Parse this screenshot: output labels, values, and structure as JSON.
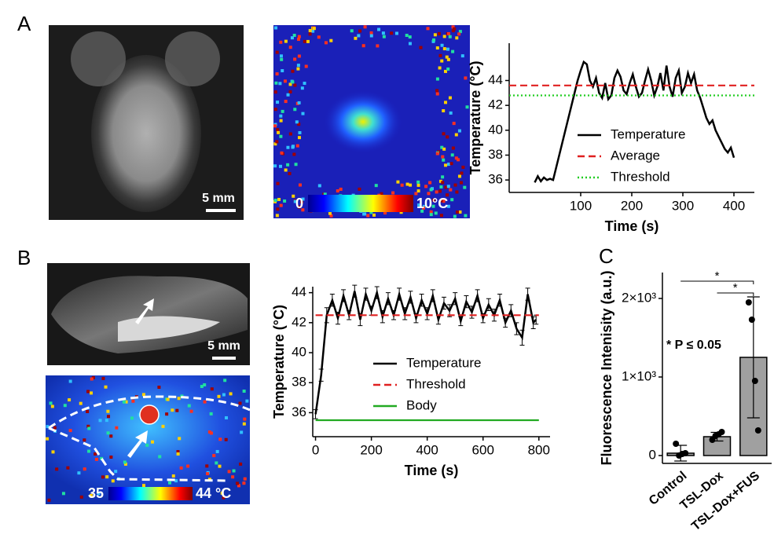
{
  "panel_labels": [
    "A",
    "B",
    "C"
  ],
  "images": [
    {
      "scale_bar": "5 mm"
    },
    {
      "colorbar_ticks": [
        0,
        {
          "value": 10,
          "label": "10°C"
        }
      ]
    },
    {
      "scale_bar": "5 mm"
    },
    {
      "colorbar_ticks": [
        35,
        {
          "value": 44,
          "label": "44 °C"
        }
      ]
    }
  ],
  "chart_data": [
    {
      "type": "line",
      "xlabel": "Time (s)",
      "ylabel": "Temperature (°C)",
      "xlim": [
        -40,
        440
      ],
      "ylim": [
        35,
        47
      ],
      "xticks": [
        100,
        200,
        300,
        400
      ],
      "yticks": [
        36,
        38,
        40,
        42,
        44
      ],
      "legend": "lower right",
      "series": [
        {
          "name": "Temperature",
          "color": "#000000",
          "dash": "solid",
          "x": [
            10,
            16,
            22,
            28,
            34,
            40,
            46,
            52,
            58,
            64,
            70,
            76,
            82,
            88,
            94,
            100,
            106,
            112,
            118,
            124,
            130,
            136,
            142,
            148,
            154,
            160,
            166,
            172,
            178,
            184,
            190,
            196,
            202,
            208,
            214,
            220,
            226,
            232,
            238,
            244,
            250,
            256,
            262,
            268,
            274,
            280,
            286,
            292,
            298,
            304,
            310,
            316,
            322,
            328,
            334,
            340,
            346,
            352,
            358,
            364,
            370,
            376,
            382,
            388,
            394,
            400
          ],
          "values": [
            35.8,
            36.3,
            35.9,
            36.2,
            36.0,
            36.1,
            36.0,
            37.0,
            38.0,
            39.0,
            40.0,
            41.0,
            42.0,
            43.0,
            44.0,
            44.8,
            45.5,
            45.3,
            44.0,
            43.5,
            44.2,
            43.0,
            42.6,
            43.8,
            42.5,
            42.8,
            44.2,
            44.8,
            44.3,
            43.2,
            42.9,
            43.8,
            44.5,
            43.5,
            42.7,
            43.0,
            44.0,
            44.9,
            44.0,
            42.8,
            43.5,
            44.6,
            43.2,
            45.2,
            43.5,
            42.7,
            44.2,
            44.8,
            43.0,
            43.5,
            44.6,
            43.8,
            44.5,
            43.2,
            42.6,
            41.8,
            41.0,
            40.5,
            40.8,
            40.0,
            39.5,
            39.0,
            38.5,
            38.2,
            38.6,
            37.8
          ]
        },
        {
          "name": "Average",
          "color": "#e02020",
          "dash": "dashed",
          "x": [
            -40,
            440
          ],
          "values": [
            43.6,
            43.6
          ]
        },
        {
          "name": "Threshold",
          "color": "#22cc22",
          "dash": "dotted",
          "x": [
            -40,
            440
          ],
          "values": [
            42.8,
            42.8
          ]
        }
      ]
    },
    {
      "type": "line",
      "xlabel": "Time (s)",
      "ylabel": "Temperature (°C)",
      "xlim": [
        -10,
        840
      ],
      "ylim": [
        34.4,
        44.4
      ],
      "xticks": [
        0,
        200,
        400,
        600,
        800
      ],
      "yticks": [
        36,
        38,
        40,
        42,
        44
      ],
      "legend": "lower right",
      "series": [
        {
          "name": "Temperature",
          "color": "#000000",
          "dash": "solid",
          "x": [
            0,
            20,
            40,
            60,
            80,
            100,
            120,
            140,
            160,
            180,
            200,
            220,
            240,
            260,
            280,
            300,
            320,
            340,
            360,
            380,
            400,
            420,
            440,
            460,
            480,
            500,
            520,
            540,
            560,
            580,
            600,
            620,
            640,
            660,
            680,
            700,
            720,
            740,
            760,
            780,
            790
          ],
          "values": [
            35.9,
            38.5,
            42.5,
            43.5,
            42.3,
            43.8,
            42.5,
            44.1,
            42.2,
            43.9,
            42.8,
            44.0,
            42.4,
            43.6,
            42.5,
            43.9,
            42.6,
            43.7,
            42.3,
            43.5,
            42.6,
            43.8,
            42.2,
            43.3,
            42.8,
            43.6,
            42.1,
            43.4,
            42.7,
            43.8,
            42.3,
            43.2,
            42.5,
            43.5,
            42.0,
            42.8,
            41.6,
            41.0,
            43.9,
            42.0,
            42.2
          ],
          "errors": [
            0.3,
            0.4,
            0.5,
            0.4,
            0.4,
            0.4,
            0.3,
            0.4,
            0.4,
            0.4,
            0.3,
            0.4,
            0.4,
            0.4,
            0.3,
            0.4,
            0.4,
            0.4,
            0.3,
            0.4,
            0.4,
            0.4,
            0.3,
            0.4,
            0.4,
            0.4,
            0.3,
            0.4,
            0.4,
            0.4,
            0.3,
            0.4,
            0.4,
            0.4,
            0.3,
            0.4,
            0.4,
            0.5,
            0.4,
            0.4,
            0.3
          ]
        },
        {
          "name": "Threshold",
          "color": "#e02020",
          "dash": "dashed",
          "x": [
            0,
            800
          ],
          "values": [
            42.5,
            42.5
          ]
        },
        {
          "name": "Body",
          "color": "#22aa22",
          "dash": "solid",
          "x": [
            0,
            800
          ],
          "values": [
            35.5,
            35.5
          ]
        }
      ]
    },
    {
      "type": "bar",
      "ylabel": "Fluorescence Intenisity (a.u.)",
      "categories": [
        "Control",
        "TSL-Dox",
        "TSL-Dox+FUS"
      ],
      "values": [
        30,
        240,
        1250
      ],
      "errors": [
        100,
        55,
        770
      ],
      "color": "#a0a0a0",
      "points": [
        [
          150,
          0,
          20,
          30
        ],
        [
          200,
          250,
          270,
          300
        ],
        [
          1950,
          1730,
          950,
          320
        ]
      ],
      "ylim": [
        -100,
        2330
      ],
      "yticks": [
        0,
        {
          "value": 1000,
          "label": "1×10³"
        },
        {
          "value": 2000,
          "label": "2×10³"
        }
      ],
      "annotations": [
        "*",
        "*",
        "* P ≤ 0.05"
      ]
    }
  ]
}
